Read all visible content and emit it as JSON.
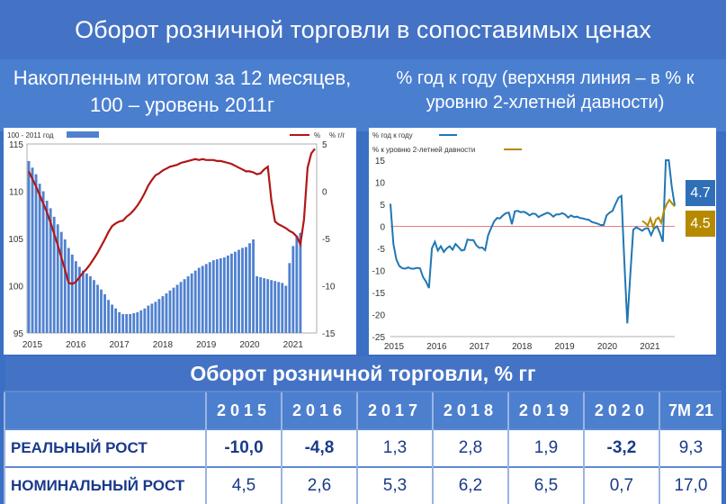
{
  "title": "Оборот розничной торговли в сопоставимых ценах",
  "left_subtitle": "Накопленным итогом за 12 месяцев, 100 – уровень 2011г",
  "right_subtitle": "% год к году (верхняя линия – в % к уровню 2-хлетней давности)",
  "colors": {
    "bar": "#4f81d0",
    "index_line": "#b11717",
    "yoy_line": "#1f77b4",
    "two_year_line": "#b58a00",
    "zero_line": "#e15050"
  },
  "chart_data": [
    {
      "type": "bar",
      "legend": [
        "100 - 2011 год",
        "% г/г"
      ],
      "right_axis_unit": "%",
      "x_tick_labels": [
        "2015",
        "2016",
        "2017",
        "2018",
        "2019",
        "2020",
        "2021"
      ],
      "y_left_ticks": [
        "95",
        "100",
        "105",
        "110",
        "115"
      ],
      "y_right_ticks": [
        "5",
        "0",
        "-5",
        "-10",
        "-15"
      ],
      "ylim_left": [
        95,
        115
      ],
      "ylim_right": [
        -15,
        5
      ],
      "series": [
        {
          "axis": "left",
          "type": "bar",
          "start": "2015-01",
          "values": [
            113.2,
            112.5,
            111.8,
            110.8,
            110.0,
            109.0,
            108.2,
            107.3,
            106.5,
            105.7,
            104.9,
            104.0,
            103.3,
            102.6,
            102.0,
            101.6,
            101.3,
            101.0,
            100.6,
            100.1,
            99.6,
            99.1,
            98.5,
            98.0,
            97.6,
            97.2,
            97.0,
            97.0,
            97.0,
            97.1,
            97.2,
            97.4,
            97.6,
            97.9,
            98.1,
            98.3,
            98.6,
            98.9,
            99.2,
            99.5,
            99.8,
            100.1,
            100.4,
            100.7,
            101.0,
            101.3,
            101.6,
            101.9,
            102.1,
            102.3,
            102.5,
            102.7,
            102.8,
            102.9,
            103.0,
            103.2,
            103.4,
            103.6,
            103.8,
            104.0,
            104.1,
            104.5,
            104.9,
            101.0,
            100.9,
            100.8,
            100.7,
            100.6,
            100.5,
            100.4,
            100.3,
            100.0,
            102.4,
            104.2,
            105.3,
            105.6
          ]
        },
        {
          "axis": "right",
          "type": "line",
          "start": "2015-01",
          "values": [
            2.1,
            1.3,
            0.5,
            -0.4,
            -1.3,
            -2.2,
            -3.3,
            -4.5,
            -5.7,
            -7.0,
            -8.3,
            -9.7,
            -9.8,
            -9.6,
            -9.1,
            -8.6,
            -8.2,
            -7.7,
            -7.1,
            -6.5,
            -5.8,
            -5.1,
            -4.3,
            -3.7,
            -3.4,
            -3.2,
            -3.1,
            -2.7,
            -2.4,
            -2.0,
            -1.5,
            -0.9,
            -0.2,
            0.6,
            1.2,
            1.7,
            1.9,
            2.2,
            2.4,
            2.6,
            2.7,
            2.8,
            3.0,
            3.1,
            3.2,
            3.3,
            3.4,
            3.3,
            3.4,
            3.3,
            3.3,
            3.3,
            3.2,
            3.2,
            3.1,
            3.0,
            2.9,
            2.7,
            2.5,
            2.3,
            2.1,
            2.1,
            2.0,
            1.8,
            1.9,
            2.3,
            2.6,
            -1.0,
            -3.2,
            -3.5,
            -3.7,
            -3.9,
            -4.2,
            -4.4,
            -4.8,
            -5.6,
            -3.0,
            2.5,
            4.0,
            4.5
          ]
        }
      ]
    },
    {
      "type": "line",
      "legend": [
        "% год к году",
        "% к уровню 2-летней давности"
      ],
      "x_tick_labels": [
        "2015",
        "2016",
        "2017",
        "2018",
        "2019",
        "2020",
        "2021"
      ],
      "y_ticks": [
        "15",
        "10",
        "5",
        "0",
        "-5",
        "-10",
        "-15",
        "-20",
        "-25"
      ],
      "ylim": [
        -25,
        15
      ],
      "last_value_labels": [
        "4.7",
        "4.5"
      ],
      "series": [
        {
          "name": "% год к году",
          "start": "2015-01",
          "values": [
            5.1,
            -4.0,
            -7.5,
            -9.0,
            -9.5,
            -9.6,
            -9.3,
            -9.6,
            -9.6,
            -9.4,
            -9.5,
            -11.5,
            -12.5,
            -14.0,
            -5.0,
            -3.5,
            -5.5,
            -4.5,
            -5.8,
            -5.0,
            -4.5,
            -5.3,
            -4.0,
            -4.7,
            -5.5,
            -5.3,
            -3.0,
            -3.1,
            -3.1,
            -4.3,
            -4.9,
            -4.8,
            -5.4,
            -2.0,
            -0.4,
            1.1,
            1.9,
            1.8,
            2.5,
            3.0,
            3.1,
            0.5,
            3.4,
            3.5,
            3.2,
            3.3,
            3.0,
            2.5,
            2.9,
            2.8,
            2.1,
            2.5,
            2.8,
            3.1,
            2.8,
            2.2,
            2.7,
            2.7,
            3.0,
            2.7,
            2.0,
            2.5,
            2.1,
            2.2,
            1.9,
            1.8,
            1.6,
            1.5,
            1.0,
            0.8,
            0.6,
            0.3,
            0.3,
            2.5,
            3.1,
            3.5,
            5.1,
            6.5,
            6.9,
            -8.0,
            -22.0,
            -11.0,
            -0.8,
            -0.2,
            -0.6,
            -1.0,
            -0.5,
            -0.4,
            -2.0,
            -0.5,
            0.0,
            -1.5,
            -3.5,
            15.0,
            15.0,
            9.0,
            4.7
          ]
        },
        {
          "name": "% к уровню 2-летней давности",
          "start": "2020-07",
          "values": [
            1.2,
            0.8,
            0.2,
            1.8,
            -0.2,
            1.5,
            2.0,
            0.8,
            3.5,
            5.0,
            6.0,
            5.2,
            4.5
          ]
        }
      ]
    }
  ],
  "table": {
    "title": "Оборот розничной торговли, % гг",
    "years": [
      "2015",
      "2016",
      "2017",
      "2018",
      "2019",
      "2020",
      "7М 21"
    ],
    "rows": [
      {
        "label": "РЕАЛЬНЫЙ РОСТ",
        "values": [
          "-10,0",
          "-4,8",
          "1,3",
          "2,8",
          "1,9",
          "-3,2",
          "9,3"
        ],
        "negative": [
          true,
          true,
          false,
          false,
          false,
          true,
          false
        ]
      },
      {
        "label": "НОМИНАЛЬНЫЙ РОСТ",
        "values": [
          "4,5",
          "2,6",
          "5,3",
          "6,2",
          "6,5",
          "0,7",
          "17,0"
        ],
        "negative": [
          false,
          false,
          false,
          false,
          false,
          false,
          false
        ]
      }
    ]
  }
}
